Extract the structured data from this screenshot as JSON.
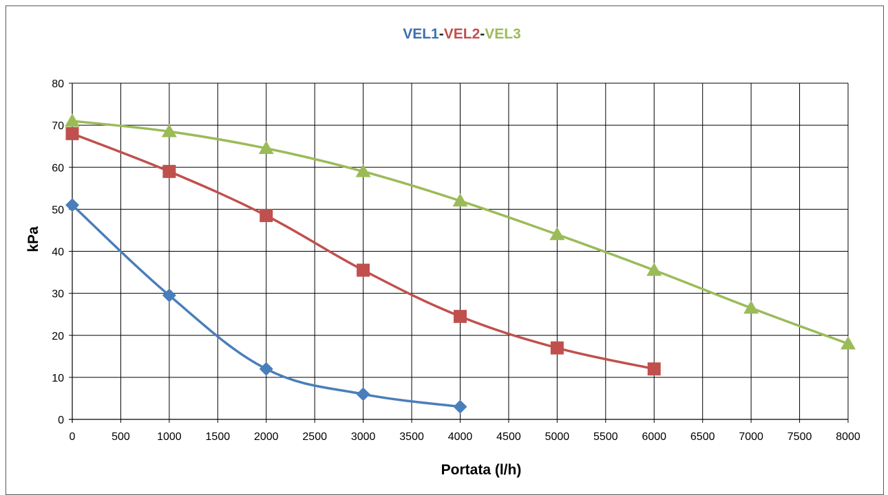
{
  "chart_data": {
    "type": "line",
    "title_parts": [
      {
        "text": "VEL1",
        "color": "#3f6fae"
      },
      {
        "text": "-",
        "color": "#262626"
      },
      {
        "text": "VEL2",
        "color": "#c0504d"
      },
      {
        "text": "-",
        "color": "#262626"
      },
      {
        "text": "VEL3",
        "color": "#9bbb59"
      }
    ],
    "xlabel": "Portata (l/h)",
    "ylabel": "kPa",
    "xlim": [
      0,
      8000
    ],
    "ylim": [
      0,
      80
    ],
    "x_ticks": [
      0,
      500,
      1000,
      1500,
      2000,
      2500,
      3000,
      3500,
      4000,
      4500,
      5000,
      5500,
      6000,
      6500,
      7000,
      7500,
      8000
    ],
    "y_ticks": [
      0,
      10,
      20,
      30,
      40,
      50,
      60,
      70,
      80
    ],
    "grid": true,
    "series": [
      {
        "color": "#4a7ebb",
        "marker": "diamond",
        "x": [
          0,
          1000,
          2000,
          3000,
          4000
        ],
        "y": [
          51,
          29.5,
          12,
          6,
          3
        ]
      },
      {
        "color": "#c0504d",
        "marker": "square",
        "x": [
          0,
          1000,
          2000,
          3000,
          4000,
          5000,
          6000
        ],
        "y": [
          68,
          59,
          48.5,
          35.5,
          24.5,
          17,
          12
        ]
      },
      {
        "color": "#9bbb59",
        "marker": "triangle",
        "x": [
          0,
          1000,
          2000,
          3000,
          4000,
          5000,
          6000,
          7000,
          8000
        ],
        "y": [
          71,
          68.5,
          64.5,
          59,
          52,
          44,
          35.5,
          26.5,
          18
        ]
      }
    ]
  }
}
